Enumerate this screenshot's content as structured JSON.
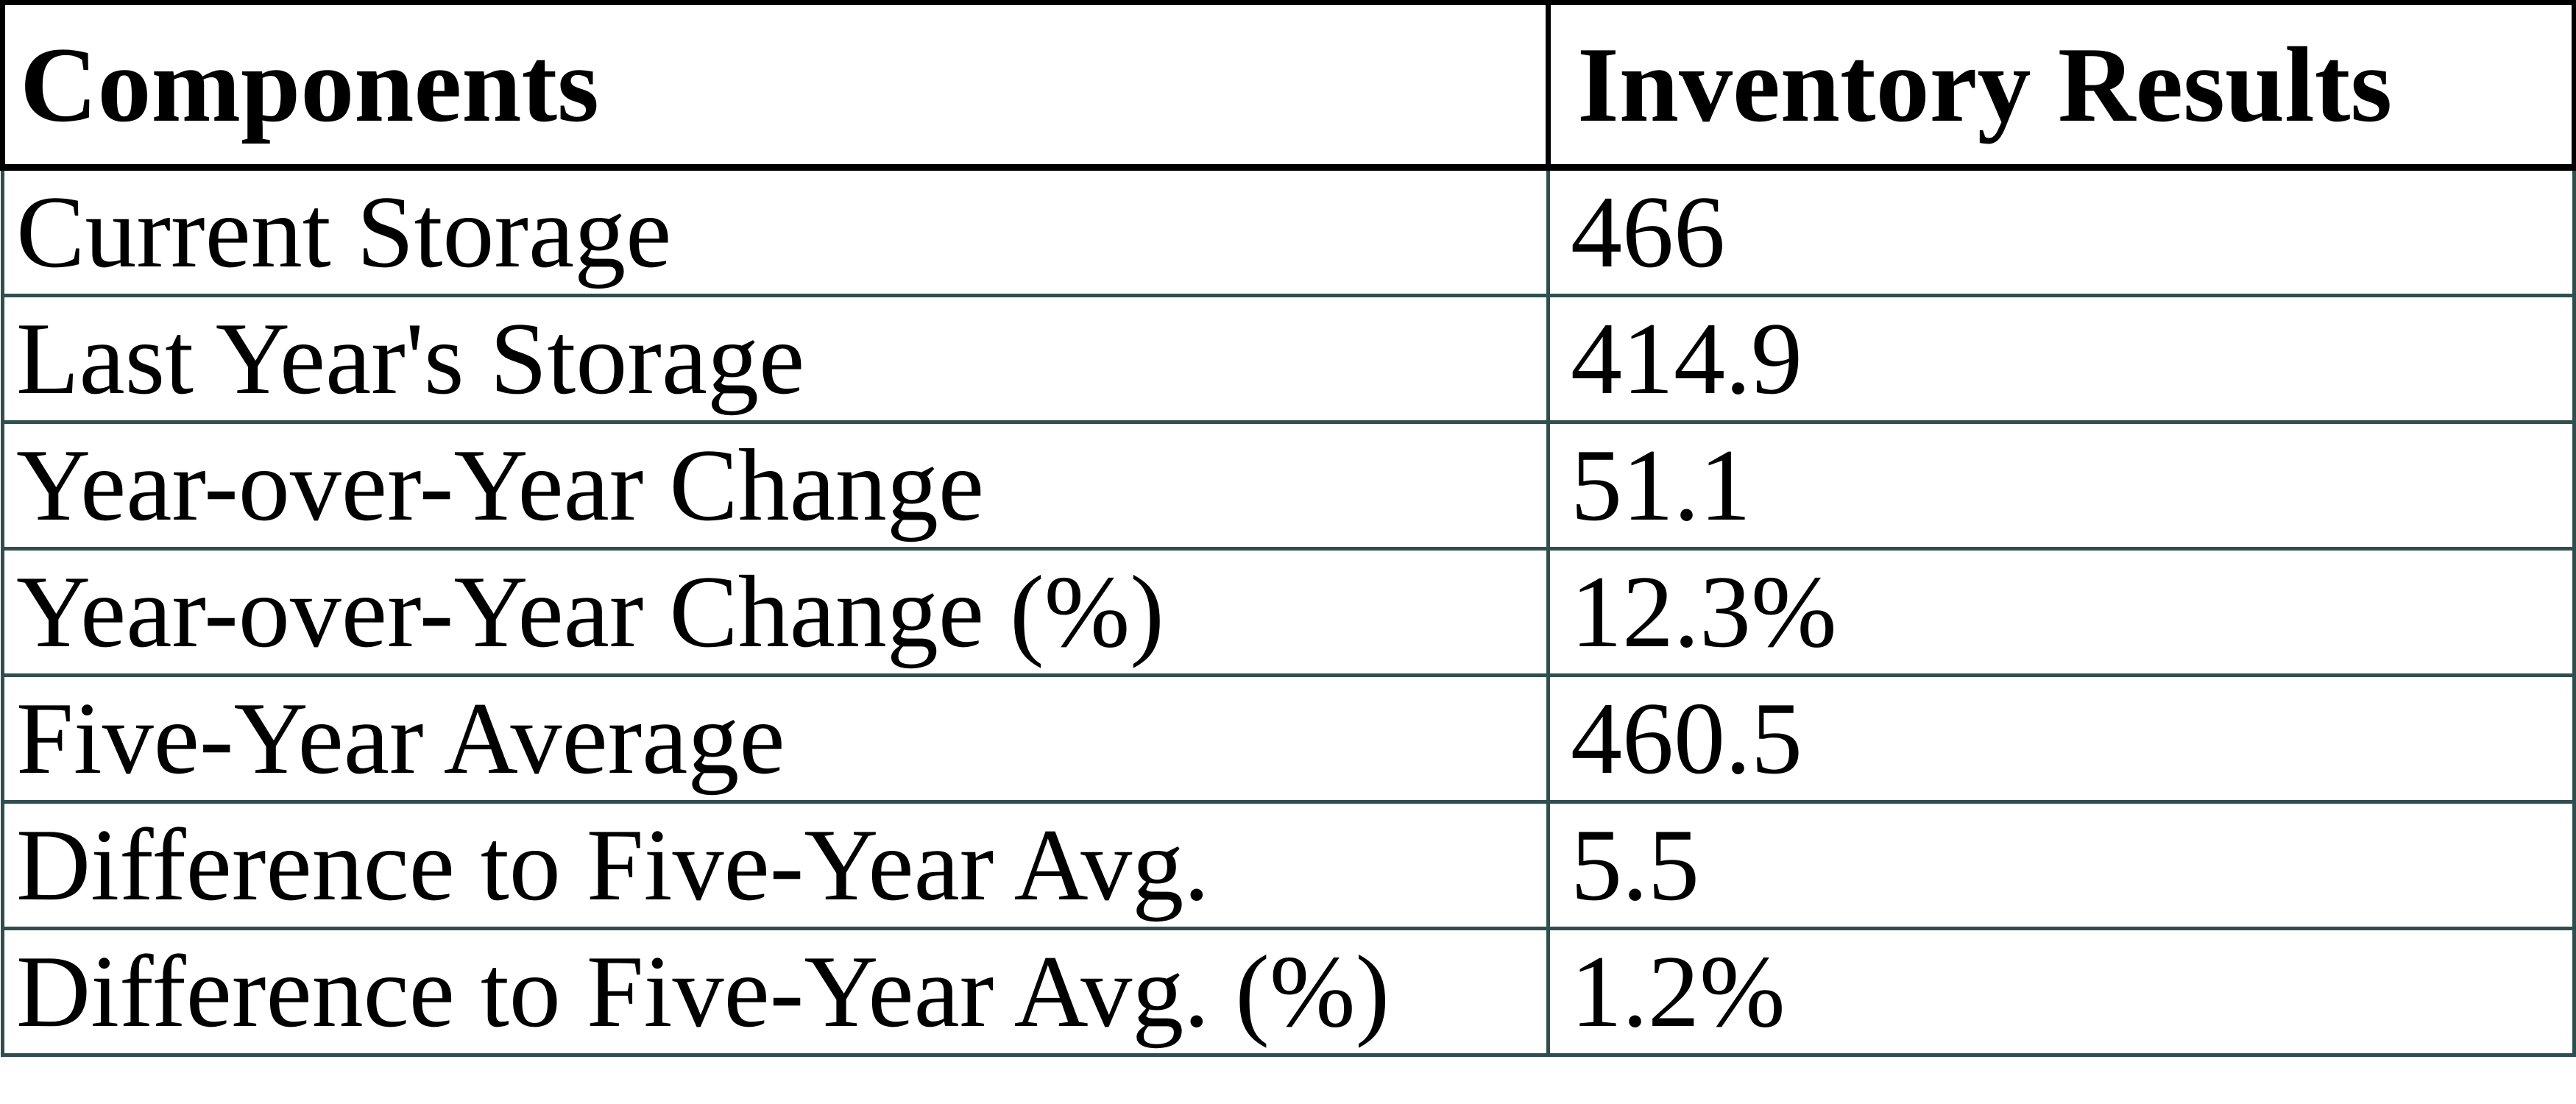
{
  "table": {
    "columns": [
      {
        "label": "Components"
      },
      {
        "label": "Inventory Results"
      }
    ],
    "rows": [
      {
        "label": "Current Storage",
        "value": "466"
      },
      {
        "label": "Last Year's Storage",
        "value": "414.9"
      },
      {
        "label": "Year-over-Year Change",
        "value": "51.1"
      },
      {
        "label": "Year-over-Year Change (%)",
        "value": "12.3%"
      },
      {
        "label": "Five-Year Average",
        "value": "460.5"
      },
      {
        "label": "Difference to Five-Year Avg.",
        "value": "5.5"
      },
      {
        "label": "Difference to Five-Year Avg. (%)",
        "value": "1.2%"
      }
    ]
  },
  "colors": {
    "header_border": "#000000",
    "body_border": "#2F4F4F",
    "text": "#000000",
    "background": "#ffffff"
  },
  "chart_data": {
    "type": "table",
    "title": "",
    "columns": [
      "Components",
      "Inventory Results"
    ],
    "categories": [
      "Current Storage",
      "Last Year's Storage",
      "Year-over-Year Change",
      "Year-over-Year Change (%)",
      "Five-Year Average",
      "Difference to Five-Year Avg.",
      "Difference to Five-Year Avg. (%)"
    ],
    "values": [
      466,
      414.9,
      51.1,
      "12.3%",
      460.5,
      5.5,
      "1.2%"
    ],
    "layout_hints": {
      "header_style": "bold, black thick borders",
      "body_style": "regular, dark-teal borders",
      "grid": "on"
    }
  }
}
